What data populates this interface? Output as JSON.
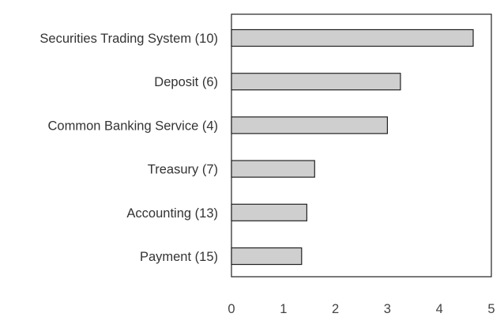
{
  "chart_data": {
    "type": "bar",
    "orientation": "horizontal",
    "categories": [
      "Securities Trading System (10)",
      "Deposit (6)",
      "Common Banking Service (4)",
      "Treasury (7)",
      "Accounting (13)",
      "Payment (15)"
    ],
    "values": [
      4.65,
      3.25,
      3.0,
      1.6,
      1.45,
      1.35
    ],
    "xlim": [
      0,
      5
    ],
    "x_ticks": [
      "0",
      "1",
      "2",
      "3",
      "4",
      "5"
    ],
    "title": "",
    "xlabel": "",
    "ylabel": "",
    "grid": false,
    "legend": "none",
    "colors": {
      "bar_fill": "#cfcfcf",
      "bar_stroke": "#222222",
      "axis": "#222222",
      "text": "#333333"
    }
  }
}
